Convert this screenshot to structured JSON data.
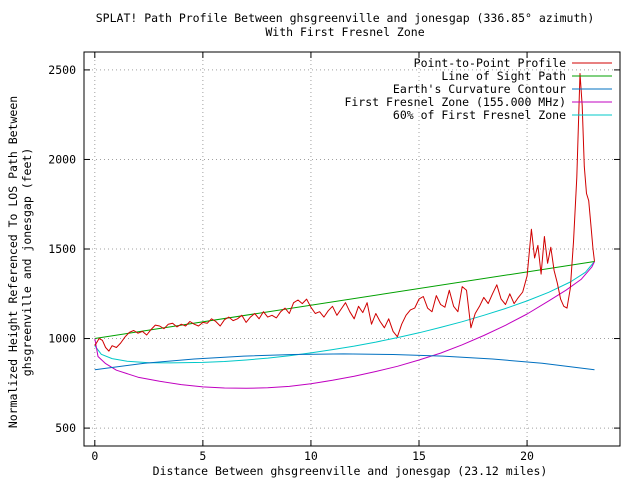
{
  "chart_data": {
    "type": "line",
    "title": "SPLAT! Path Profile Between ghsgreenville and jonesgap (336.85° azimuth)",
    "subtitle": "With First Fresnel Zone",
    "xlabel": "Distance Between ghsgreenville and jonesgap (23.12 miles)",
    "ylabel_line1": "Normalized Height Referenced To LOS Path Between",
    "ylabel_line2": "ghsgreenville and jonesgap (feet)",
    "xlim": [
      -0.5,
      24.3
    ],
    "ylim": [
      400,
      2600
    ],
    "xticks": [
      0,
      5,
      10,
      15,
      20
    ],
    "yticks": [
      500,
      1000,
      1500,
      2000,
      2500
    ],
    "grid": true,
    "legend_position": "top-right",
    "series": [
      {
        "name": "Point-to-Point Profile",
        "color": "#d00000",
        "x": [
          0.0,
          0.2,
          0.35,
          0.5,
          0.65,
          0.8,
          1.0,
          1.2,
          1.4,
          1.6,
          1.8,
          2.0,
          2.2,
          2.4,
          2.6,
          2.8,
          3.0,
          3.2,
          3.4,
          3.6,
          3.8,
          4.0,
          4.2,
          4.4,
          4.6,
          4.8,
          5.0,
          5.2,
          5.4,
          5.6,
          5.8,
          6.0,
          6.2,
          6.4,
          6.6,
          6.8,
          7.0,
          7.2,
          7.4,
          7.6,
          7.8,
          8.0,
          8.2,
          8.4,
          8.6,
          8.8,
          9.0,
          9.2,
          9.4,
          9.6,
          9.8,
          10.0,
          10.2,
          10.4,
          10.6,
          10.8,
          11.0,
          11.2,
          11.4,
          11.6,
          11.8,
          12.0,
          12.2,
          12.4,
          12.6,
          12.8,
          13.0,
          13.2,
          13.4,
          13.6,
          13.8,
          14.0,
          14.2,
          14.4,
          14.6,
          14.8,
          15.0,
          15.2,
          15.4,
          15.6,
          15.8,
          16.0,
          16.2,
          16.4,
          16.6,
          16.8,
          17.0,
          17.2,
          17.4,
          17.6,
          17.8,
          18.0,
          18.2,
          18.4,
          18.6,
          18.8,
          19.0,
          19.2,
          19.4,
          19.6,
          19.8,
          20.0,
          20.2,
          20.35,
          20.5,
          20.65,
          20.8,
          20.95,
          21.1,
          21.25,
          21.4,
          21.55,
          21.7,
          21.85,
          22.0,
          22.15,
          22.3,
          22.45,
          22.55,
          22.65,
          22.75,
          22.85,
          22.95,
          23.05,
          23.12
        ],
        "y": [
          960,
          1000,
          990,
          950,
          930,
          960,
          950,
          975,
          1010,
          1035,
          1045,
          1030,
          1040,
          1020,
          1050,
          1075,
          1070,
          1055,
          1080,
          1085,
          1065,
          1080,
          1070,
          1095,
          1080,
          1070,
          1090,
          1085,
          1110,
          1095,
          1070,
          1105,
          1120,
          1100,
          1110,
          1130,
          1090,
          1120,
          1140,
          1110,
          1150,
          1120,
          1130,
          1115,
          1150,
          1170,
          1140,
          1200,
          1215,
          1195,
          1220,
          1175,
          1140,
          1150,
          1120,
          1155,
          1180,
          1130,
          1165,
          1200,
          1150,
          1110,
          1180,
          1145,
          1200,
          1080,
          1140,
          1095,
          1060,
          1110,
          1040,
          1010,
          1080,
          1130,
          1160,
          1170,
          1220,
          1235,
          1170,
          1150,
          1240,
          1190,
          1175,
          1270,
          1180,
          1150,
          1290,
          1270,
          1060,
          1140,
          1180,
          1230,
          1195,
          1250,
          1300,
          1220,
          1190,
          1250,
          1195,
          1230,
          1260,
          1350,
          1610,
          1450,
          1520,
          1360,
          1570,
          1420,
          1510,
          1380,
          1310,
          1220,
          1180,
          1170,
          1280,
          1540,
          1900,
          2480,
          2300,
          1960,
          1810,
          1770,
          1640,
          1500,
          1430
        ]
      },
      {
        "name": "Line of Sight Path",
        "color": "#00a000",
        "x": [
          0,
          23.12
        ],
        "y": [
          1000,
          1430
        ]
      },
      {
        "name": "Earth's Curvature Contour",
        "color": "#0070c0",
        "x": [
          0.0,
          2.3,
          4.6,
          6.9,
          9.2,
          11.5,
          13.8,
          16.1,
          18.4,
          20.7,
          23.12
        ],
        "y": [
          826,
          862,
          886,
          902,
          911,
          914,
          911,
          902,
          886,
          862,
          826
        ]
      },
      {
        "name": "First Fresnel Zone (155.000 MHz)",
        "color": "#c000c0",
        "x": [
          0.0,
          0.15,
          0.5,
          1.0,
          2.0,
          3.0,
          4.0,
          5.0,
          6.0,
          7.0,
          8.0,
          9.0,
          10.0,
          11.0,
          12.0,
          13.0,
          14.0,
          15.0,
          16.0,
          17.0,
          18.0,
          19.0,
          20.0,
          21.0,
          21.8,
          22.5,
          23.0,
          23.12
        ],
        "y": [
          1000,
          900,
          860,
          823,
          784,
          761,
          743,
          730,
          724,
          722,
          725,
          733,
          748,
          767,
          790,
          816,
          845,
          880,
          919,
          965,
          1017,
          1074,
          1137,
          1210,
          1270,
          1330,
          1400,
          1430
        ]
      },
      {
        "name": "60% of First Fresnel Zone",
        "color": "#00c8c8",
        "x": [
          0.0,
          0.3,
          0.8,
          1.5,
          2.5,
          3.5,
          5.0,
          6.0,
          7.0,
          8.0,
          9.0,
          10.0,
          11.0,
          12.0,
          13.0,
          14.0,
          15.0,
          16.0,
          17.0,
          18.0,
          19.0,
          20.0,
          21.0,
          22.0,
          22.7,
          23.12
        ],
        "y": [
          960,
          912,
          888,
          873,
          865,
          864,
          867,
          872,
          880,
          891,
          904,
          920,
          938,
          958,
          980,
          1005,
          1032,
          1062,
          1094,
          1130,
          1168,
          1210,
          1258,
          1316,
          1370,
          1430
        ]
      }
    ]
  }
}
